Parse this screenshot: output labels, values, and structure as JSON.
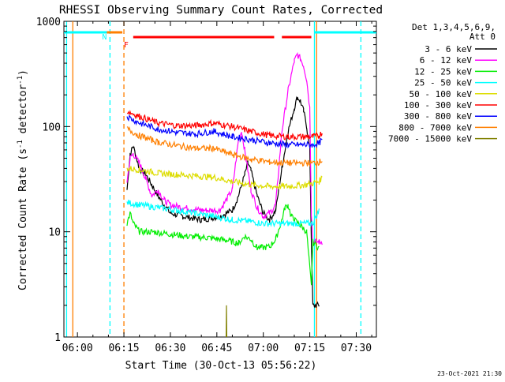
{
  "chart_data": {
    "type": "line",
    "title": "RHESSI Observing Summary Count Rates, Corrected",
    "xlabel": "Start Time (30-Oct-13 05:56:22)",
    "ylabel": "Corrected Count Rate (s",
    "ylabel_sup1": "-1",
    "ylabel_mid": " detector",
    "ylabel_sup2": "-1",
    "ylabel_end": ")",
    "yscale": "log",
    "ylim": [
      1,
      1000
    ],
    "xlim_minutes": [
      -4.37,
      96.5
    ],
    "x_unit_note": "minutes after 06:00 UT",
    "x_ticks": [
      {
        "label": "06:00",
        "min": 0
      },
      {
        "label": "06:15",
        "min": 15
      },
      {
        "label": "06:30",
        "min": 30
      },
      {
        "label": "06:45",
        "min": 45
      },
      {
        "label": "07:00",
        "min": 60
      },
      {
        "label": "07:15",
        "min": 75
      },
      {
        "label": "07:30",
        "min": 90
      }
    ],
    "y_ticks": [
      {
        "label": "1",
        "val": 1
      },
      {
        "label": "10",
        "val": 10
      },
      {
        "label": "100",
        "val": 100
      },
      {
        "label": "1000",
        "val": 1000
      }
    ],
    "legend_header": [
      "Det 1,3,4,5,6,9,",
      "Att 0"
    ],
    "legend_position": "right",
    "series": [
      {
        "name": "3 - 6 keV",
        "color": "#000000",
        "points": [
          [
            16,
            25
          ],
          [
            17,
            55
          ],
          [
            18,
            65
          ],
          [
            20,
            40
          ],
          [
            22,
            35
          ],
          [
            24,
            28
          ],
          [
            26,
            22
          ],
          [
            28,
            18
          ],
          [
            30,
            15
          ],
          [
            34,
            14
          ],
          [
            40,
            13
          ],
          [
            46,
            14
          ],
          [
            50,
            16
          ],
          [
            52,
            22
          ],
          [
            54,
            35
          ],
          [
            55,
            45
          ],
          [
            56,
            38
          ],
          [
            58,
            22
          ],
          [
            60,
            15
          ],
          [
            62,
            13
          ],
          [
            64,
            16
          ],
          [
            66,
            40
          ],
          [
            68,
            90
          ],
          [
            70,
            150
          ],
          [
            71,
            190
          ],
          [
            72,
            175
          ],
          [
            73,
            140
          ],
          [
            74,
            100
          ],
          [
            75,
            60
          ],
          [
            75.5,
            8
          ],
          [
            76,
            2
          ],
          [
            78,
            2
          ]
        ]
      },
      {
        "name": "6 - 12 keV",
        "color": "#ff00ff",
        "points": [
          [
            16,
            30
          ],
          [
            17,
            50
          ],
          [
            18,
            55
          ],
          [
            20,
            45
          ],
          [
            22,
            32
          ],
          [
            24,
            22
          ],
          [
            26,
            25
          ],
          [
            28,
            20
          ],
          [
            30,
            18
          ],
          [
            34,
            17
          ],
          [
            40,
            16
          ],
          [
            46,
            16
          ],
          [
            50,
            25
          ],
          [
            52,
            75
          ],
          [
            53,
            90
          ],
          [
            54,
            60
          ],
          [
            56,
            25
          ],
          [
            58,
            17
          ],
          [
            60,
            14
          ],
          [
            62,
            15
          ],
          [
            64,
            18
          ],
          [
            66,
            90
          ],
          [
            68,
            220
          ],
          [
            70,
            420
          ],
          [
            71,
            480
          ],
          [
            72,
            440
          ],
          [
            73,
            380
          ],
          [
            74,
            280
          ],
          [
            75,
            150
          ],
          [
            75.5,
            15
          ],
          [
            76,
            8
          ],
          [
            78,
            8
          ],
          [
            79,
            8
          ]
        ]
      },
      {
        "name": "12 - 25 keV",
        "color": "#00ee00",
        "points": [
          [
            16,
            12
          ],
          [
            17,
            15
          ],
          [
            18,
            12
          ],
          [
            20,
            10
          ],
          [
            24,
            10
          ],
          [
            30,
            9.5
          ],
          [
            36,
            9
          ],
          [
            42,
            8.8
          ],
          [
            48,
            8.3
          ],
          [
            52,
            7.8
          ],
          [
            54,
            9
          ],
          [
            56,
            8.5
          ],
          [
            58,
            7
          ],
          [
            62,
            7.2
          ],
          [
            64,
            8.5
          ],
          [
            66,
            13
          ],
          [
            67,
            17
          ],
          [
            68,
            18
          ],
          [
            69,
            14
          ],
          [
            70,
            13
          ],
          [
            72,
            11.5
          ],
          [
            74,
            10
          ],
          [
            75.5,
            3
          ],
          [
            76,
            8
          ],
          [
            78,
            7
          ]
        ]
      },
      {
        "name": "25 - 50 keV",
        "color": "#00ffff",
        "points": [
          [
            16,
            19
          ],
          [
            20,
            18
          ],
          [
            26,
            17
          ],
          [
            32,
            16
          ],
          [
            38,
            15
          ],
          [
            44,
            14
          ],
          [
            50,
            13
          ],
          [
            56,
            12.5
          ],
          [
            60,
            12
          ],
          [
            66,
            12
          ],
          [
            72,
            12
          ],
          [
            75,
            12
          ],
          [
            76,
            12
          ],
          [
            78,
            16
          ]
        ]
      },
      {
        "name": "50 - 100 keV",
        "color": "#dddd00",
        "points": [
          [
            16,
            40
          ],
          [
            20,
            39
          ],
          [
            26,
            36
          ],
          [
            32,
            35
          ],
          [
            38,
            34
          ],
          [
            44,
            33
          ],
          [
            50,
            30
          ],
          [
            56,
            28
          ],
          [
            62,
            27
          ],
          [
            68,
            27
          ],
          [
            74,
            28
          ],
          [
            78,
            30
          ],
          [
            79,
            33
          ]
        ]
      },
      {
        "name": "100 - 300 keV",
        "color": "#ff0000",
        "points": [
          [
            16,
            140
          ],
          [
            20,
            125
          ],
          [
            26,
            108
          ],
          [
            32,
            102
          ],
          [
            38,
            102
          ],
          [
            44,
            108
          ],
          [
            50,
            100
          ],
          [
            56,
            90
          ],
          [
            62,
            82
          ],
          [
            68,
            80
          ],
          [
            74,
            80
          ],
          [
            76,
            80
          ],
          [
            78,
            82
          ],
          [
            79,
            88
          ]
        ]
      },
      {
        "name": "300 - 800 keV",
        "color": "#0000ff",
        "points": [
          [
            16,
            125
          ],
          [
            20,
            108
          ],
          [
            26,
            95
          ],
          [
            32,
            88
          ],
          [
            38,
            85
          ],
          [
            44,
            90
          ],
          [
            50,
            80
          ],
          [
            56,
            75
          ],
          [
            62,
            70
          ],
          [
            68,
            67
          ],
          [
            74,
            67
          ],
          [
            76,
            67
          ],
          [
            78,
            70
          ],
          [
            79,
            74
          ]
        ]
      },
      {
        "name": "800 - 7000 keV",
        "color": "#ff7f00",
        "points": [
          [
            16,
            95
          ],
          [
            20,
            82
          ],
          [
            26,
            71
          ],
          [
            32,
            66
          ],
          [
            38,
            62
          ],
          [
            44,
            62
          ],
          [
            50,
            54
          ],
          [
            56,
            49
          ],
          [
            62,
            46
          ],
          [
            68,
            45
          ],
          [
            74,
            45
          ],
          [
            76,
            45
          ],
          [
            78,
            46
          ],
          [
            79,
            48
          ]
        ]
      },
      {
        "name": "7000 - 15000 keV",
        "color": "#808000",
        "points": [
          [
            48,
            1
          ],
          [
            48.1,
            2
          ],
          [
            48.2,
            1
          ]
        ]
      }
    ],
    "flags": [
      {
        "code": "F",
        "color": "#ff0000",
        "y_frac": 0.045,
        "segments": [
          [
            18,
            63.5
          ],
          [
            66,
            75.5
          ]
        ]
      },
      {
        "code": "N",
        "color": "#ff7f00",
        "y_frac": 0.0,
        "segments": [
          [
            -4.37,
            14.5
          ]
        ]
      },
      {
        "code": "N",
        "color": "#00ffff",
        "y_frac": 0.03,
        "segments": [
          [
            -4.37,
            9.5
          ],
          [
            76.5,
            96.5
          ]
        ]
      }
    ],
    "vlines": [
      {
        "min": -3.5,
        "color": "#00ffff",
        "dash": false
      },
      {
        "min": -1.5,
        "color": "#ff7f00",
        "dash": false
      },
      {
        "min": 10.5,
        "color": "#00ffff",
        "dash": true
      },
      {
        "min": 15.0,
        "color": "#ff7f00",
        "dash": true
      },
      {
        "min": 76.5,
        "color": "#00ffff",
        "dash": false
      },
      {
        "min": 77.2,
        "color": "#ff7f00",
        "dash": false
      },
      {
        "min": 91.5,
        "color": "#00ffff",
        "dash": true
      }
    ],
    "flag_label_N": "N",
    "flag_label_F": "F"
  },
  "footer": {
    "date": "23-Oct-2021 21:30"
  }
}
